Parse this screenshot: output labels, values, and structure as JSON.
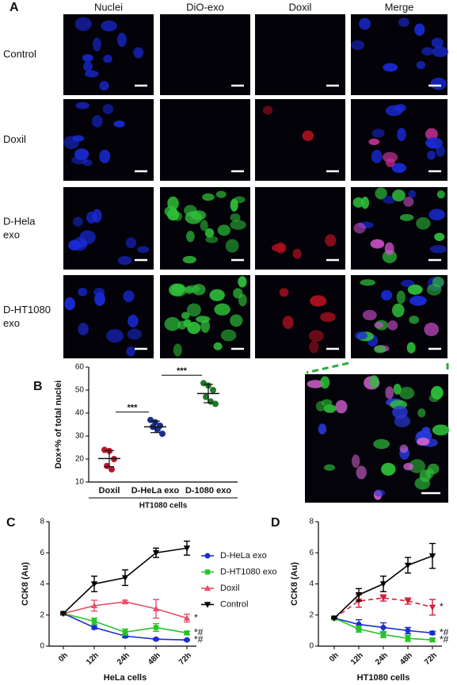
{
  "panel_labels": [
    "A",
    "B",
    "C",
    "D"
  ],
  "microscopy": {
    "columns": [
      {
        "label": "Nuclei",
        "color": "#2b5fd9"
      },
      {
        "label": "DiO-exo",
        "color": "#2fae3a"
      },
      {
        "label": "Doxil",
        "color": "#d4203a"
      },
      {
        "label": "Merge",
        "color": "#222222"
      }
    ],
    "rows": [
      [
        "Control"
      ],
      [
        "Doxil"
      ],
      [
        "D-Hela",
        "exo"
      ],
      [
        "D-HT1080",
        "exo"
      ]
    ]
  },
  "chart_data": [
    {
      "type": "dotplot",
      "ylabel": "Dox+% of total nuclei",
      "group_label": "HT1080 cells",
      "categories": [
        "Doxil",
        "D-HeLa exo",
        "D-1080 exo"
      ],
      "colors": [
        "#b5182e",
        "#1c2f8a",
        "#1f7a2a"
      ],
      "points": [
        [
          24,
          23.5,
          20,
          17,
          15.5
        ],
        [
          37,
          36,
          34.5,
          34,
          33,
          31
        ],
        [
          53,
          52,
          50,
          47,
          45,
          44
        ]
      ],
      "means": [
        20.2,
        34,
        48.5
      ],
      "errors": [
        3.5,
        2.5,
        4
      ],
      "significance": [
        "***",
        "***"
      ],
      "ylim": [
        10,
        60
      ],
      "yticks": [
        10,
        20,
        30,
        40,
        50,
        60
      ]
    },
    {
      "type": "line",
      "ylabel": "CCK8  (Au)",
      "xlabel": "HeLa cells",
      "categories": [
        "0h",
        "12h",
        "24h",
        "48h",
        "72h"
      ],
      "ylim": [
        0,
        8
      ],
      "yticks": [
        0,
        2,
        4,
        6,
        8
      ],
      "series": [
        {
          "name": "D-HeLa exo",
          "color": "#1a2fd1",
          "marker": "circle",
          "values": [
            2.1,
            1.2,
            0.65,
            0.45,
            0.4
          ],
          "errors": [
            0.05,
            0.1,
            0.1,
            0.05,
            0.05
          ],
          "annotation": "*#"
        },
        {
          "name": "D-HT1080 exo",
          "color": "#27c427",
          "marker": "square",
          "values": [
            2.1,
            1.6,
            0.9,
            1.2,
            0.85
          ],
          "errors": [
            0.05,
            0.2,
            0.2,
            0.25,
            0.1
          ],
          "annotation": "*#"
        },
        {
          "name": "Doxil",
          "color": "#e8506a",
          "marker": "triangle",
          "values": [
            2.1,
            2.6,
            2.85,
            2.4,
            1.8
          ],
          "errors": [
            0.05,
            0.35,
            0.1,
            0.6,
            0.25
          ],
          "annotation": "*"
        },
        {
          "name": "Control",
          "color": "#000000",
          "marker": "triangle-down",
          "values": [
            2.1,
            4.0,
            4.4,
            6.0,
            6.3
          ],
          "errors": [
            0.05,
            0.5,
            0.5,
            0.3,
            0.45
          ]
        }
      ]
    },
    {
      "type": "line",
      "ylabel": "CCK8  (Au)",
      "xlabel": "HT1080 cells",
      "categories": [
        "0h",
        "12h",
        "24h",
        "48h",
        "72h"
      ],
      "ylim": [
        0,
        8
      ],
      "yticks": [
        0,
        2,
        4,
        6,
        8
      ],
      "series": [
        {
          "color": "#1a2fd1",
          "marker": "circle",
          "values": [
            1.8,
            1.4,
            1.2,
            1.0,
            0.85
          ],
          "errors": [
            0.05,
            0.3,
            0.3,
            0.2,
            0.1
          ],
          "annotation": "*#"
        },
        {
          "color": "#27c427",
          "marker": "square",
          "values": [
            1.8,
            1.1,
            0.75,
            0.5,
            0.4
          ],
          "errors": [
            0.05,
            0.2,
            0.2,
            0.2,
            0.1
          ],
          "annotation": "*#"
        },
        {
          "color": "#d4203a",
          "marker": "triangle-down",
          "dashed": true,
          "values": [
            1.8,
            2.9,
            3.1,
            2.9,
            2.5
          ],
          "errors": [
            0.05,
            0.4,
            0.2,
            0.2,
            0.5
          ],
          "annotation": "*"
        },
        {
          "color": "#000000",
          "marker": "triangle-down",
          "values": [
            1.8,
            3.3,
            4.0,
            5.2,
            5.8
          ],
          "errors": [
            0.05,
            0.4,
            0.5,
            0.5,
            0.8
          ]
        }
      ]
    }
  ]
}
